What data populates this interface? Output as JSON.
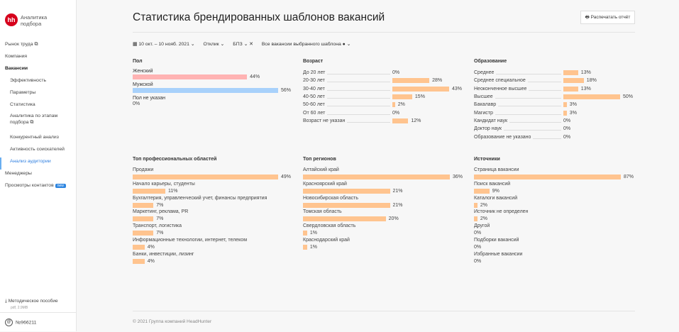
{
  "app": {
    "logo": "hh",
    "name": "Аналитика подбора"
  },
  "nav": [
    {
      "label": "Рынок труда ⧉",
      "cls": ""
    },
    {
      "label": "Компания",
      "cls": ""
    },
    {
      "label": "Вакансии",
      "cls": "bold"
    },
    {
      "label": "Эффективность",
      "cls": "sub"
    },
    {
      "label": "Параметры",
      "cls": "sub"
    },
    {
      "label": "Статистика",
      "cls": "sub"
    },
    {
      "label": "Аналитика по этапам подбора ⧉",
      "cls": "sub two"
    },
    {
      "label": "Конкурентный анализ",
      "cls": "sub"
    },
    {
      "label": "Активность соискателей",
      "cls": "sub"
    },
    {
      "label": "Анализ аудитории",
      "cls": "sub active"
    },
    {
      "label": "Менеджеры",
      "cls": ""
    },
    {
      "label": "Просмотры контактов",
      "cls": "",
      "badge": "new"
    }
  ],
  "download": {
    "label": "Методическое пособие",
    "meta": "pdf, 2.9MB"
  },
  "account": "№966211",
  "title": "Статистика брендированных шаблонов вакансий",
  "print_label": "Распечатать отчёт",
  "filters": {
    "date": "10 окт. – 10 нояб. 2021",
    "response": "Отклик",
    "bpz": "БПЗ",
    "template": "Все вакансии выбранного шаблона"
  },
  "colors": {
    "orange": "#ffc48f",
    "pink": "#ffb3b3",
    "blue": "#a8d1fb"
  },
  "sections": {
    "gender": {
      "title": "Пол",
      "items": [
        {
          "label": "Женский",
          "value": 44,
          "color": "#ffb3b3"
        },
        {
          "label": "Мужской",
          "value": 56,
          "color": "#a8d1fb"
        },
        {
          "label": "Пол не указан",
          "value": 0
        }
      ]
    },
    "age": {
      "title": "Возраст",
      "items": [
        {
          "label": "До 20 лет",
          "value": 0
        },
        {
          "label": "20-30 лет",
          "value": 28
        },
        {
          "label": "30-40 лет",
          "value": 43
        },
        {
          "label": "40-50 лет",
          "value": 15
        },
        {
          "label": "50-60 лет",
          "value": 2
        },
        {
          "label": "От 60 лет",
          "value": 0
        },
        {
          "label": "Возраст не указан",
          "value": 12
        }
      ]
    },
    "education": {
      "title": "Образование",
      "items": [
        {
          "label": "Среднее",
          "value": 13
        },
        {
          "label": "Среднее специальное",
          "value": 18
        },
        {
          "label": "Неоконченное высшее",
          "value": 13
        },
        {
          "label": "Высшее",
          "value": 50
        },
        {
          "label": "Бакалавр",
          "value": 3
        },
        {
          "label": "Магистр",
          "value": 3
        },
        {
          "label": "Кандидат наук",
          "value": 0
        },
        {
          "label": "Доктор наук",
          "value": 0
        },
        {
          "label": "Образование не указано",
          "value": 0
        }
      ]
    },
    "areas": {
      "title": "Топ профессиональных областей",
      "items": [
        {
          "label": "Продажи",
          "value": 49
        },
        {
          "label": "Начало карьеры, студенты",
          "value": 11
        },
        {
          "label": "Бухгалтерия, управленческий учет, финансы предприятия",
          "value": 7
        },
        {
          "label": "Маркетинг, реклама, PR",
          "value": 7
        },
        {
          "label": "Транспорт, логистика",
          "value": 7
        },
        {
          "label": "Информационные технологии, интернет, телеком",
          "value": 4
        },
        {
          "label": "Банки, инвестиции, лизинг",
          "value": 4
        }
      ]
    },
    "regions": {
      "title": "Топ регионов",
      "items": [
        {
          "label": "Алтайский край",
          "value": 36
        },
        {
          "label": "Красноярский край",
          "value": 21
        },
        {
          "label": "Новосибирская область",
          "value": 21
        },
        {
          "label": "Томская область",
          "value": 20
        },
        {
          "label": "Свердловская область",
          "value": 1
        },
        {
          "label": "Краснодарский край",
          "value": 1
        }
      ]
    },
    "sources": {
      "title": "Источники",
      "items": [
        {
          "label": "Страница вакансии",
          "value": 87
        },
        {
          "label": "Поиск вакансий",
          "value": 9
        },
        {
          "label": "Каталоги вакансий",
          "value": 2
        },
        {
          "label": "Источник не определен",
          "value": 2
        },
        {
          "label": "Другой",
          "value": 0
        },
        {
          "label": "Подборки вакансий",
          "value": 0
        },
        {
          "label": "Избранные вакансии",
          "value": 0
        }
      ]
    }
  },
  "footer": "© 2021 Группа компаний HeadHunter"
}
